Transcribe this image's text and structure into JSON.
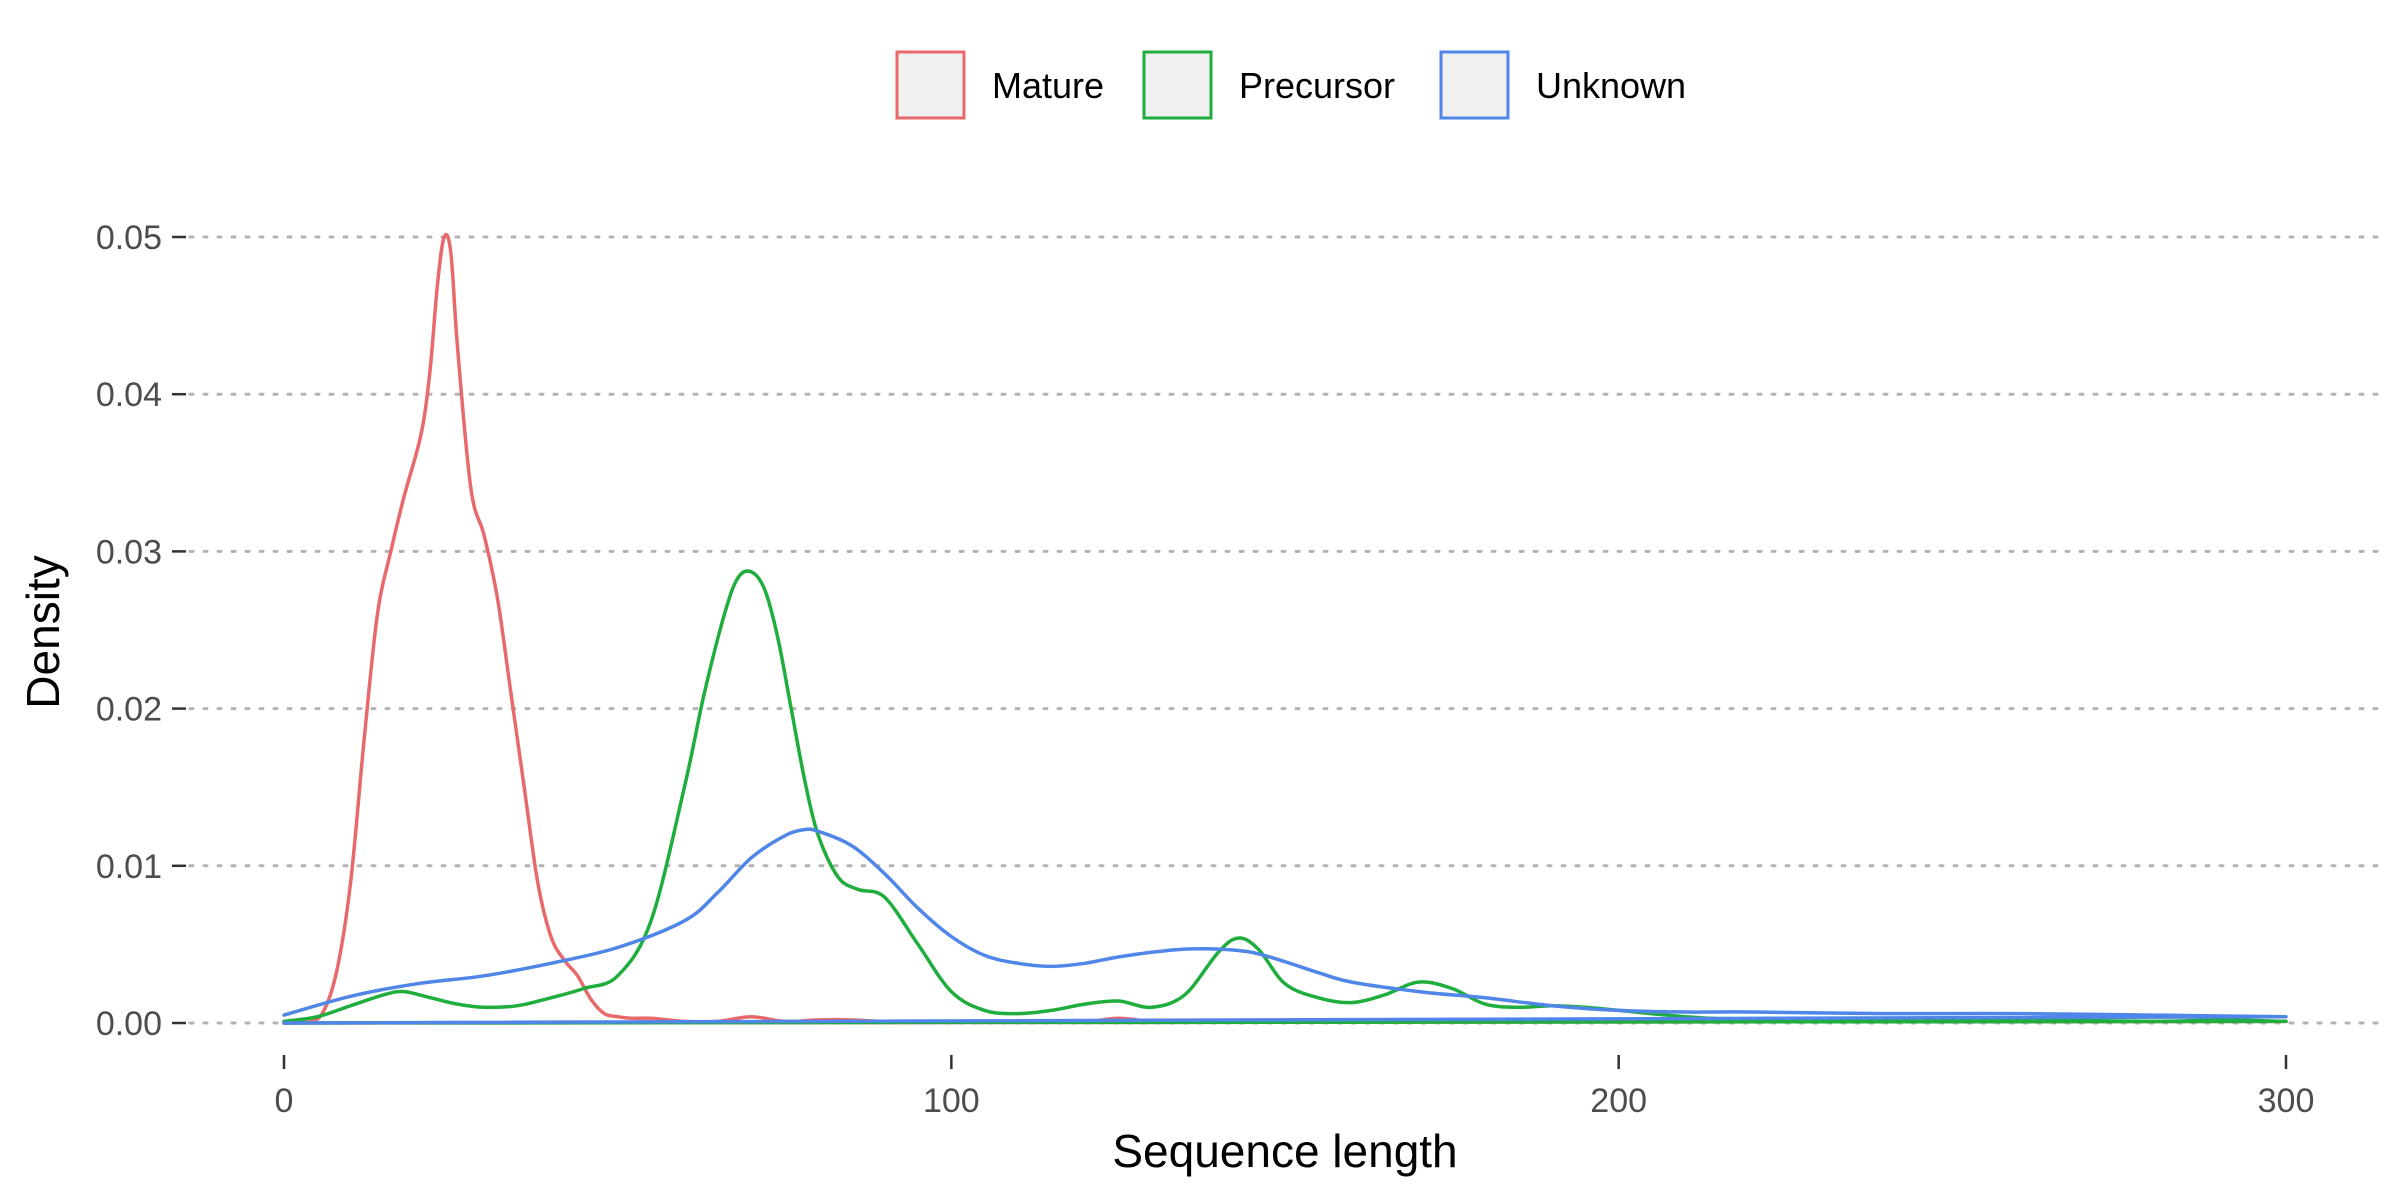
{
  "chart_data": {
    "type": "line",
    "title": "",
    "xlabel": "Sequence length",
    "ylabel": "Density",
    "xlim": [
      0,
      300
    ],
    "ylim": [
      0,
      0.05
    ],
    "xticks": [
      0,
      100,
      200,
      300
    ],
    "xtick_labels": [
      "0",
      "100",
      "200",
      "300"
    ],
    "yticks": [
      0,
      0.01,
      0.02,
      0.03,
      0.04,
      0.05
    ],
    "ytick_labels": [
      "0.00",
      "0.01",
      "0.02",
      "0.03",
      "0.04",
      "0.05"
    ],
    "grid": "horizontal-major-dotted",
    "legend_position": "top",
    "series": [
      {
        "name": "Mature",
        "color": "#e8696b",
        "x": [
          0,
          4,
          6,
          8,
          10,
          12,
          14,
          16,
          18,
          20,
          21,
          22,
          23,
          24,
          25,
          26,
          28,
          30,
          32,
          34,
          36,
          38,
          40,
          42,
          44,
          46,
          48,
          50,
          52,
          55,
          60,
          65,
          70,
          75,
          80,
          85,
          90,
          100,
          110,
          120,
          125,
          130,
          135,
          140,
          160,
          200,
          250,
          300
        ],
        "y": [
          0,
          0.0001,
          0.0008,
          0.0035,
          0.009,
          0.018,
          0.026,
          0.03,
          0.0335,
          0.0365,
          0.0385,
          0.042,
          0.047,
          0.05,
          0.049,
          0.043,
          0.034,
          0.031,
          0.027,
          0.021,
          0.015,
          0.009,
          0.0055,
          0.004,
          0.003,
          0.0015,
          0.0006,
          0.0004,
          0.0003,
          0.0003,
          0.0001,
          0.0001,
          0.0004,
          0.0001,
          0.0002,
          0.0002,
          0.0001,
          0.0001,
          0.0001,
          0.0001,
          0.0003,
          0.0001,
          0.0001,
          0.0001,
          0.0001,
          0.0001,
          0.0001,
          0.0001
        ]
      },
      {
        "name": "Precursor",
        "color": "#1fae3e",
        "x": [
          0,
          5,
          10,
          15,
          18,
          22,
          26,
          30,
          35,
          40,
          45,
          50,
          55,
          60,
          63,
          66,
          68,
          70,
          72,
          74,
          76,
          78,
          80,
          83,
          86,
          90,
          95,
          100,
          105,
          110,
          115,
          120,
          125,
          130,
          135,
          140,
          143,
          146,
          150,
          155,
          160,
          165,
          170,
          175,
          180,
          185,
          190,
          195,
          200,
          210,
          220,
          240,
          260,
          280,
          290,
          300
        ],
        "y": [
          0.0001,
          0.0004,
          0.0011,
          0.0018,
          0.002,
          0.0016,
          0.0012,
          0.001,
          0.0011,
          0.0016,
          0.0022,
          0.003,
          0.0065,
          0.015,
          0.021,
          0.026,
          0.0283,
          0.0287,
          0.0276,
          0.0245,
          0.02,
          0.0155,
          0.012,
          0.0093,
          0.0085,
          0.008,
          0.005,
          0.002,
          0.0008,
          0.0006,
          0.0008,
          0.0012,
          0.0014,
          0.001,
          0.0018,
          0.0045,
          0.0054,
          0.0047,
          0.0025,
          0.0016,
          0.0013,
          0.0018,
          0.0026,
          0.0022,
          0.0012,
          0.001,
          0.0011,
          0.001,
          0.0008,
          0.0004,
          0.0002,
          0.0002,
          0.0002,
          0.0001,
          0.0002,
          0.0001
        ]
      },
      {
        "name": "Unknown",
        "color": "#4f86e8",
        "x": [
          0,
          10,
          20,
          30,
          40,
          50,
          60,
          65,
          70,
          75,
          78,
          80,
          85,
          90,
          95,
          100,
          105,
          110,
          115,
          120,
          125,
          130,
          135,
          140,
          145,
          150,
          155,
          160,
          170,
          180,
          190,
          200,
          210,
          220,
          240,
          260,
          280,
          300
        ],
        "y": [
          0.0005,
          0.0017,
          0.0025,
          0.003,
          0.0038,
          0.0048,
          0.0065,
          0.0083,
          0.0105,
          0.0119,
          0.0123,
          0.0122,
          0.0113,
          0.0095,
          0.0073,
          0.0055,
          0.0043,
          0.0038,
          0.0036,
          0.0038,
          0.0042,
          0.0045,
          0.0047,
          0.0047,
          0.0045,
          0.0039,
          0.0032,
          0.0026,
          0.002,
          0.0016,
          0.0011,
          0.0008,
          0.0007,
          0.0007,
          0.0006,
          0.0006,
          0.0005,
          0.0004
        ]
      }
    ]
  }
}
